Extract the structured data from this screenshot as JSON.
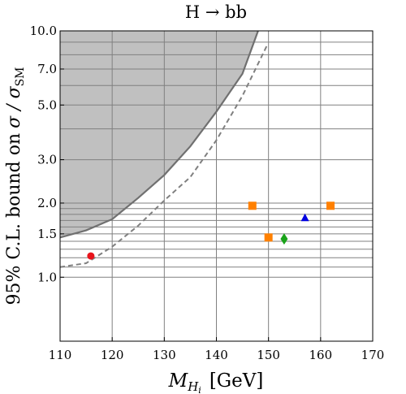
{
  "chart_data": {
    "type": "scatter",
    "title": "H → bb",
    "xlabel": "M",
    "xlabel_sub": "H",
    "xlabel_subsub": "i",
    "xlabel_unit": "[GeV]",
    "ylabel": "95% C.L. bound on",
    "ylabel_sigma": "σ / σ",
    "ylabel_sub": "SM",
    "xlim": [
      110,
      170
    ],
    "ylim": [
      0.55,
      10.0
    ],
    "yscale": "log",
    "grid": true,
    "x_ticks": [
      110,
      120,
      130,
      140,
      150,
      160,
      170
    ],
    "x_tick_labels": [
      "110",
      "120",
      "130",
      "140",
      "150",
      "160",
      "170"
    ],
    "y_ticks": [
      1.0,
      1.5,
      2.0,
      3.0,
      5.0,
      7.0,
      10.0
    ],
    "y_tick_labels": [
      "1.0",
      "1.5",
      "2.0",
      "3.0",
      "5.0",
      "7.0",
      "10.0"
    ],
    "y_extra_gridlines": [
      1.1,
      1.2,
      1.3,
      1.4,
      1.6,
      1.7,
      1.8,
      1.9,
      4.0,
      6.0,
      8.0,
      9.0
    ],
    "observed_limit": {
      "x": [
        110,
        115,
        120,
        125,
        130,
        135,
        140,
        145,
        148
      ],
      "y": [
        1.45,
        1.55,
        1.72,
        2.1,
        2.6,
        3.4,
        4.7,
        6.7,
        10.0
      ],
      "excluded_region_color": "#c0c0c0",
      "line_color": "#707070"
    },
    "expected_limit": {
      "x": [
        110,
        115,
        120,
        125,
        130,
        135,
        140,
        145,
        149.8
      ],
      "y": [
        1.1,
        1.14,
        1.33,
        1.62,
        2.05,
        2.55,
        3.6,
        5.45,
        8.8
      ],
      "line_color": "#808080",
      "style": "dashed"
    },
    "points": [
      {
        "x": 115.9,
        "y": 1.22,
        "marker": "circle",
        "color": "#e8141b"
      },
      {
        "x": 146.9,
        "y": 1.95,
        "marker": "square",
        "color": "#ff8000"
      },
      {
        "x": 150.0,
        "y": 1.45,
        "marker": "square",
        "color": "#ff8000"
      },
      {
        "x": 153.0,
        "y": 1.43,
        "marker": "diamond",
        "color": "#1aa31a"
      },
      {
        "x": 157.0,
        "y": 1.74,
        "marker": "triangle",
        "color": "#0000e0"
      },
      {
        "x": 161.9,
        "y": 1.95,
        "marker": "square",
        "color": "#ff8000"
      }
    ]
  }
}
